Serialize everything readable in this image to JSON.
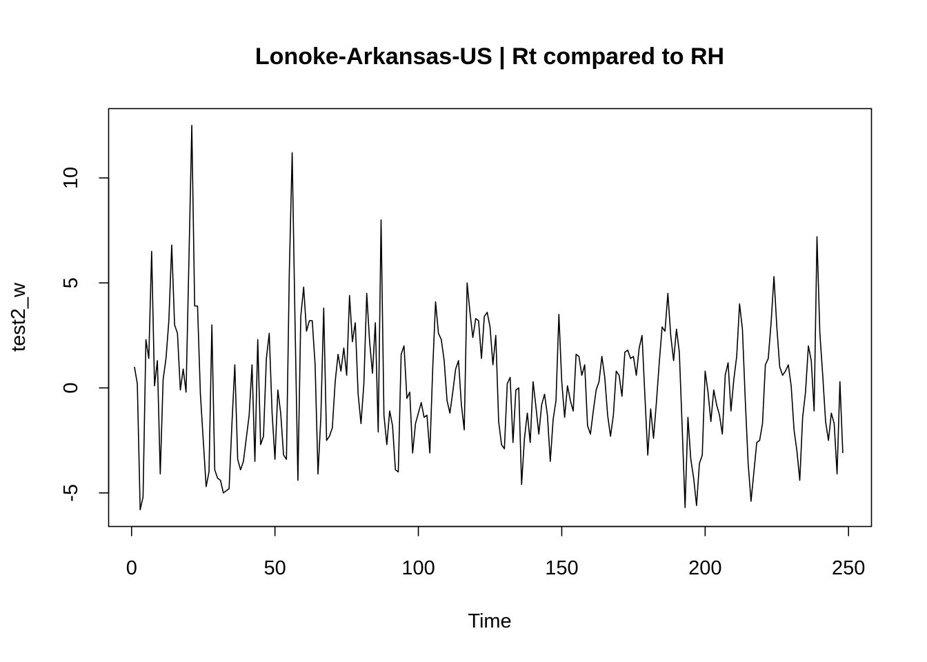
{
  "chart_data": {
    "type": "line",
    "title": "Lonoke-Arkansas-US | Rt compared to RH",
    "xlabel": "Time",
    "ylabel": "test2_w",
    "xlim": [
      -8,
      258
    ],
    "ylim": [
      -6.6,
      13.3
    ],
    "x_ticks": [
      0,
      50,
      100,
      150,
      200,
      250
    ],
    "y_ticks": [
      -5,
      0,
      5,
      10
    ],
    "grid": false,
    "line_color": "#000000",
    "series": [
      {
        "x_start": 1,
        "values": [
          1.0,
          0.2,
          -5.8,
          -5.2,
          2.3,
          1.4,
          6.5,
          0.1,
          1.3,
          -4.1,
          0.4,
          1.4,
          3.2,
          6.8,
          3.0,
          2.6,
          -0.1,
          0.9,
          -0.2,
          6.1,
          12.5,
          3.9,
          3.9,
          -0.3,
          -2.5,
          -4.7,
          -4.0,
          3.0,
          -3.9,
          -4.3,
          -4.4,
          -5.0,
          -4.9,
          -4.8,
          -1.7,
          1.1,
          -3.4,
          -3.9,
          -3.5,
          -2.4,
          -1.3,
          1.1,
          -3.5,
          2.3,
          -2.7,
          -2.3,
          1.4,
          2.6,
          -1.2,
          -3.4,
          -0.1,
          -1.2,
          -3.2,
          -3.4,
          5.5,
          11.2,
          3.1,
          -4.4,
          3.4,
          4.8,
          2.7,
          3.2,
          3.2,
          1.1,
          -4.1,
          -1.4,
          3.8,
          -2.5,
          -2.3,
          -1.9,
          0.3,
          1.6,
          0.8,
          1.9,
          0.6,
          4.4,
          2.2,
          3.1,
          -0.3,
          -1.7,
          0.2,
          4.5,
          2.2,
          0.7,
          3.1,
          -2.1,
          8.0,
          -1.3,
          -2.7,
          -1.1,
          -1.8,
          -3.9,
          -4.0,
          1.6,
          2.0,
          -0.5,
          -0.2,
          -3.1,
          -1.7,
          -1.2,
          -0.7,
          -1.4,
          -1.3,
          -3.1,
          0.9,
          4.1,
          2.6,
          2.3,
          1.3,
          -0.6,
          -1.2,
          -0.2,
          0.9,
          1.3,
          -0.8,
          -2.0,
          5.0,
          3.6,
          2.4,
          3.3,
          3.2,
          1.4,
          3.4,
          3.6,
          2.9,
          1.1,
          2.5,
          -1.6,
          -2.7,
          -2.9,
          0.2,
          0.5,
          -2.6,
          -0.1,
          0.0,
          -4.6,
          -2.4,
          -1.2,
          -2.6,
          0.3,
          -0.9,
          -2.2,
          -0.8,
          -0.3,
          -1.3,
          -3.5,
          -1.5,
          -0.6,
          3.5,
          0.3,
          -1.4,
          0.1,
          -0.6,
          -1.1,
          1.6,
          1.5,
          0.6,
          1.1,
          -1.8,
          -2.2,
          -1.1,
          -0.1,
          0.3,
          1.5,
          0.5,
          -1.3,
          -2.3,
          -1.3,
          0.8,
          0.6,
          -0.4,
          1.7,
          1.8,
          1.4,
          1.5,
          0.6,
          1.9,
          2.5,
          -0.4,
          -3.2,
          -1.0,
          -2.4,
          -0.7,
          1.2,
          2.9,
          2.7,
          4.5,
          2.5,
          1.3,
          2.8,
          1.7,
          -1.9,
          -5.7,
          -1.4,
          -3.4,
          -4.3,
          -5.6,
          -3.6,
          -3.2,
          0.8,
          -0.2,
          -1.6,
          -0.1,
          -0.8,
          -1.3,
          -2.2,
          0.6,
          1.2,
          -1.1,
          0.4,
          1.5,
          4.0,
          2.8,
          -0.6,
          -3.6,
          -5.4,
          -4.0,
          -2.6,
          -2.5,
          -1.7,
          1.1,
          1.4,
          3.1,
          5.3,
          2.9,
          1.0,
          0.6,
          0.8,
          1.1,
          0.1,
          -2.0,
          -3.0,
          -4.4,
          -1.4,
          -0.2,
          2.0,
          1.3,
          -1.1,
          7.2,
          2.6,
          0.6,
          -1.6,
          -2.5,
          -1.2,
          -1.7,
          -4.1,
          0.3,
          -3.1
        ]
      }
    ]
  }
}
